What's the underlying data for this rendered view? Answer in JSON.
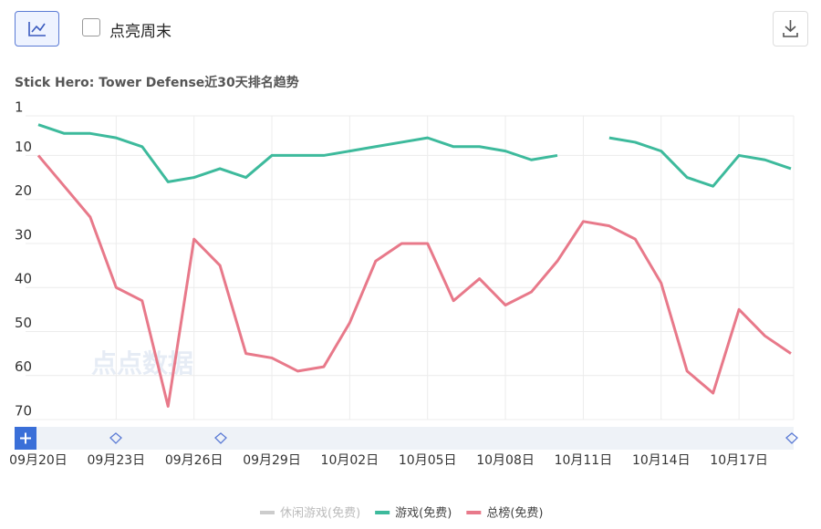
{
  "toolbar": {
    "checkbox_label": "点亮周末"
  },
  "chart_data": {
    "type": "line",
    "title": "Stick Hero: Tower Defense近30天排名趋势",
    "watermark": "点点数据",
    "categories": [
      "09月20日",
      null,
      null,
      "09月23日",
      null,
      null,
      "09月26日",
      null,
      null,
      "09月29日",
      null,
      null,
      "10月02日",
      null,
      null,
      "10月05日",
      null,
      null,
      "10月08日",
      null,
      null,
      "10月11日",
      null,
      null,
      "10月14日",
      null,
      null,
      "10月17日",
      null,
      null
    ],
    "ylim": [
      1,
      70
    ],
    "y_reversed": true,
    "yticks": [
      1,
      10,
      20,
      30,
      40,
      50,
      60,
      70
    ],
    "grid": true,
    "series": [
      {
        "name": "休闲游戏(免费)",
        "color": "#cccccc",
        "values": [
          null,
          null,
          null,
          null,
          null,
          null,
          null,
          null,
          null,
          null,
          null,
          null,
          null,
          null,
          null,
          null,
          null,
          null,
          null,
          null,
          null,
          null,
          null,
          null,
          null,
          null,
          null,
          null,
          null,
          null
        ]
      },
      {
        "name": "游戏(免费)",
        "color": "#3dba9c",
        "values": [
          3,
          5,
          5,
          6,
          8,
          16,
          15,
          13,
          15,
          10,
          10,
          10,
          9,
          8,
          7,
          6,
          8,
          8,
          9,
          11,
          10,
          null,
          6,
          7,
          9,
          15,
          17,
          10,
          11,
          13
        ]
      },
      {
        "name": "总榜(免费)",
        "color": "#e8798a",
        "values": [
          10,
          17,
          24,
          40,
          43,
          67,
          29,
          35,
          55,
          56,
          59,
          58,
          48,
          34,
          30,
          30,
          43,
          38,
          44,
          41,
          34,
          25,
          26,
          29,
          39,
          59,
          64,
          45,
          51,
          55
        ]
      }
    ]
  }
}
